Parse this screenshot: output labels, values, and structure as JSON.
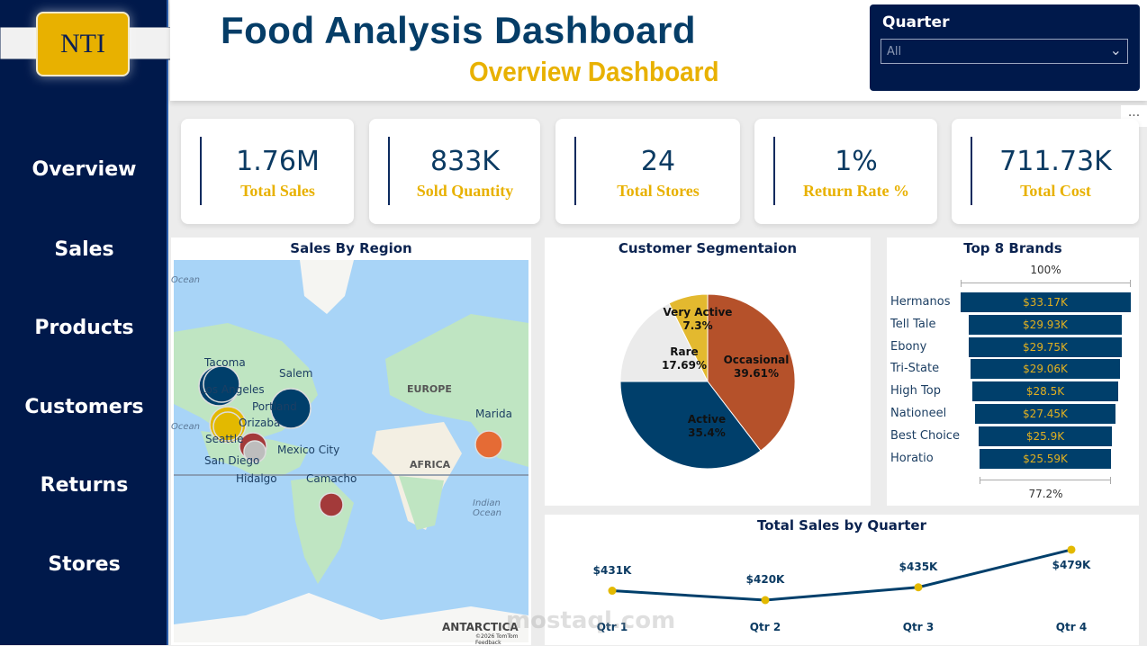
{
  "logo": {
    "text": "NTI"
  },
  "sidebar": {
    "items": [
      {
        "label": "Overview"
      },
      {
        "label": "Sales"
      },
      {
        "label": "Products"
      },
      {
        "label": "Customers"
      },
      {
        "label": "Returns"
      },
      {
        "label": "Stores"
      }
    ]
  },
  "header": {
    "title": "Food Analysis Dashboard",
    "subtitle": "Overview Dashboard"
  },
  "slicer": {
    "label": "Quarter",
    "value": "All",
    "icon": "chevron-down-icon"
  },
  "more_options": "...",
  "kpis": [
    {
      "value": "1.76M",
      "label": "Total Sales"
    },
    {
      "value": "833K",
      "label": "Sold Quantity"
    },
    {
      "value": "24",
      "label": "Total Stores"
    },
    {
      "value": "1%",
      "label": "Return Rate %"
    },
    {
      "value": "711.73K",
      "label": "Total Cost"
    }
  ],
  "map": {
    "title": "Sales By Region",
    "places": [
      "Tacoma",
      "Salem",
      "Los Angeles",
      "Portland",
      "Orizaba",
      "Seattle",
      "Mexico City",
      "San Diego",
      "Hidalgo",
      "Camacho",
      "Marida"
    ],
    "regions": [
      "EUROPE",
      "AFRICA",
      "ANTARCTICA",
      "Indian Ocean",
      "Ocean",
      "Ocean"
    ],
    "attribution": "©2026 TomTom Feedback",
    "bubble_colors": [
      "#003f6b",
      "#e3b900",
      "#a33a3a",
      "#bdbdbd",
      "#e56b35"
    ]
  },
  "chart_data": [
    {
      "type": "pie",
      "title": "Customer Segmentaion",
      "categories": [
        "Occasional",
        "Active",
        "Rare",
        "Very Active"
      ],
      "values": [
        39.61,
        35.4,
        17.69,
        7.3
      ],
      "labels": [
        "39.61%",
        "35.4%",
        "17.69%",
        "7.3%"
      ],
      "colors": [
        "#b5512a",
        "#003f6b",
        "#ebebeb",
        "#e3b92f"
      ]
    },
    {
      "type": "bar",
      "title": "Top 8 Brands",
      "orientation": "funnel",
      "categories": [
        "Hermanos",
        "Tell Tale",
        "Ebony",
        "Tri-State",
        "High Top",
        "Nationeel",
        "Best Choice",
        "Horatio"
      ],
      "values": [
        33.17,
        29.93,
        29.75,
        29.06,
        28.5,
        27.45,
        25.9,
        25.59
      ],
      "labels": [
        "$33.17K",
        "$29.93K",
        "$29.75K",
        "$29.06K",
        "$28.5K",
        "$27.45K",
        "$25.9K",
        "$25.59K"
      ],
      "top_pct": "100%",
      "bottom_pct": "77.2%",
      "color": "#003f6b",
      "label_color": "#e0b020"
    },
    {
      "type": "line",
      "title": "Total Sales by Quarter",
      "categories": [
        "Qtr 1",
        "Qtr 2",
        "Qtr 3",
        "Qtr 4"
      ],
      "values": [
        431,
        420,
        435,
        479
      ],
      "labels": [
        "$431K",
        "$420K",
        "$435K",
        "$479K"
      ],
      "line_color": "#003f6b",
      "marker_color": "#e3b900"
    }
  ],
  "watermark": "mostaql.com"
}
